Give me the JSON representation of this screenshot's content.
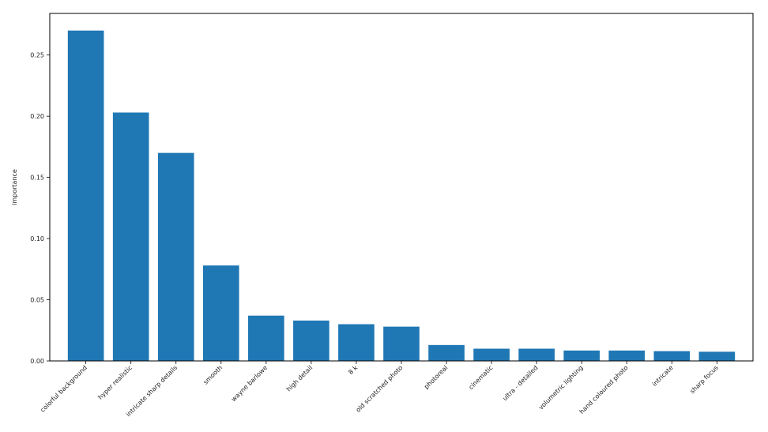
{
  "chart_data": {
    "type": "bar",
    "title": "",
    "xlabel": "",
    "ylabel": "importance",
    "ylim": [
      0,
      0.284
    ],
    "yticks": [
      0.0,
      0.05,
      0.1,
      0.15,
      0.2,
      0.25
    ],
    "ytick_labels": [
      "0.00",
      "0.05",
      "0.10",
      "0.15",
      "0.20",
      "0.25"
    ],
    "grid": false,
    "bar_color": "#1f77b4",
    "categories": [
      "colorful background",
      "hyper realistic",
      "intricate sharp details",
      "smooth",
      "wayne barlowe",
      "high detail",
      "8 k",
      "old scratched photo",
      "photoreal",
      "cinematic",
      "ultra - detailed",
      "volumetric lighting",
      "hand coloured photo",
      "intricate",
      "sharp focus"
    ],
    "values": [
      0.27,
      0.203,
      0.17,
      0.078,
      0.037,
      0.033,
      0.03,
      0.028,
      0.013,
      0.01,
      0.01,
      0.0085,
      0.0085,
      0.008,
      0.0075
    ]
  }
}
